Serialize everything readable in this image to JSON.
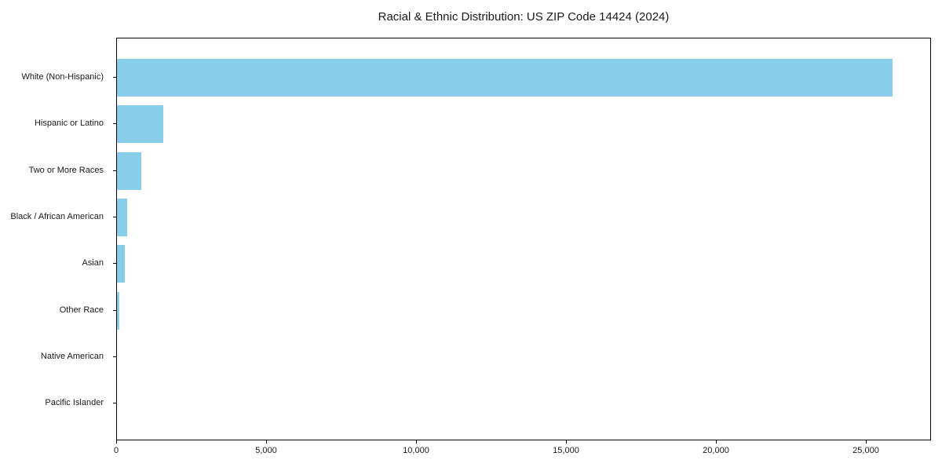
{
  "chart_data": {
    "type": "bar",
    "orientation": "horizontal",
    "title": "Racial & Ethnic Distribution: US ZIP Code 14424 (2024)",
    "categories": [
      "White (Non-Hispanic)",
      "Hispanic or Latino",
      "Two or More Races",
      "Black / African American",
      "Asian",
      "Other Race",
      "Native American",
      "Pacific Islander"
    ],
    "values": [
      25850,
      1550,
      810,
      340,
      250,
      80,
      10,
      5
    ],
    "xlabel": "",
    "ylabel": "",
    "xlim": [
      0,
      27170
    ],
    "x_ticks": [
      0,
      5000,
      10000,
      15000,
      20000,
      25000
    ],
    "x_tick_labels": [
      "0",
      "5,000",
      "10,000",
      "15,000",
      "20,000",
      "25,000"
    ],
    "bar_color": "#87CEEB",
    "text_color": "#1a1a1a",
    "frame_color": "#000000",
    "grid": false,
    "legend": "none"
  }
}
